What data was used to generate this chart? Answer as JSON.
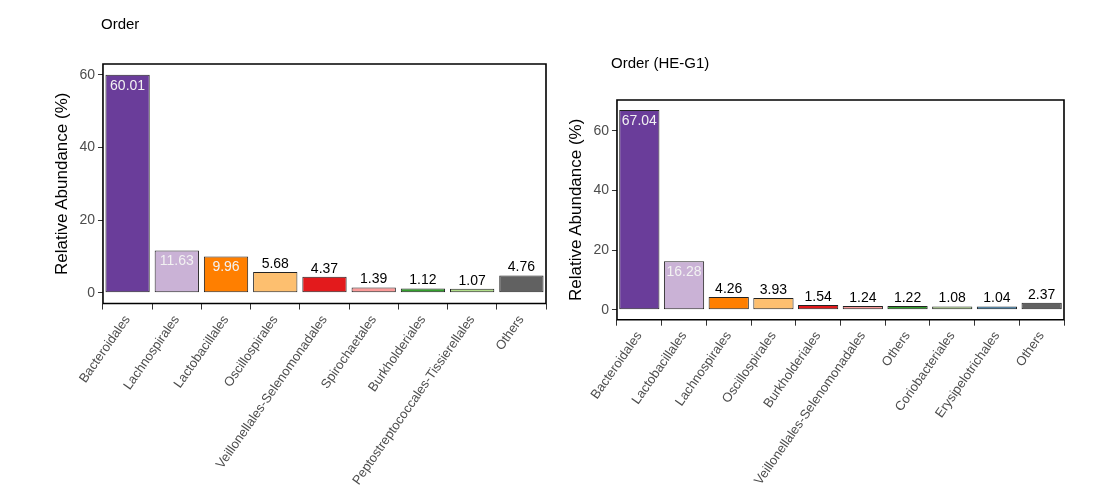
{
  "chart_data": [
    {
      "type": "bar",
      "title": "Order",
      "ylabel": "Relative Abundance (%)",
      "categories": [
        "Bacteroidales",
        "Lachnospirales",
        "Lactobacillales",
        "Oscillospirales",
        "Veillonellales-Selenomonadales",
        "Spirochaetales",
        "Burkholderiales",
        "Peptostreptococcales-Tissierellales",
        "Others"
      ],
      "values": [
        60.01,
        11.63,
        9.96,
        5.68,
        4.37,
        1.39,
        1.12,
        1.07,
        4.76
      ],
      "colors": [
        "#6a3d9a",
        "#cab2d6",
        "#ff7f00",
        "#fdbf6f",
        "#e31a1c",
        "#fb9a99",
        "#33a02c",
        "#b2df8a",
        "#616161"
      ],
      "ylim": [
        -3,
        63
      ],
      "yticks": [
        0,
        20,
        40,
        60
      ],
      "data_labels": true
    },
    {
      "type": "bar",
      "title": "Order (HE-G1)",
      "ylabel": "Relative Abundance (%)",
      "categories": [
        "Bacteroidales",
        "Lactobacillales",
        "Lachnospirales",
        "Oscillospirales",
        "Burkholderiales",
        "Veillonellales-Selenomonadales",
        "Others",
        "Coriobacteriales",
        "Erysipelotrichales",
        "Others"
      ],
      "values": [
        67.04,
        16.28,
        4.26,
        3.93,
        1.54,
        1.24,
        1.22,
        1.08,
        1.04,
        2.37
      ],
      "colors": [
        "#6a3d9a",
        "#cab2d6",
        "#ff7f00",
        "#fdbf6f",
        "#e31a1c",
        "#fb9a99",
        "#33a02c",
        "#b2df8a",
        "#1f78b4",
        "#616161"
      ],
      "ylim": [
        -3.35,
        70.4
      ],
      "yticks": [
        0,
        20,
        40,
        60
      ],
      "data_labels": true
    }
  ]
}
